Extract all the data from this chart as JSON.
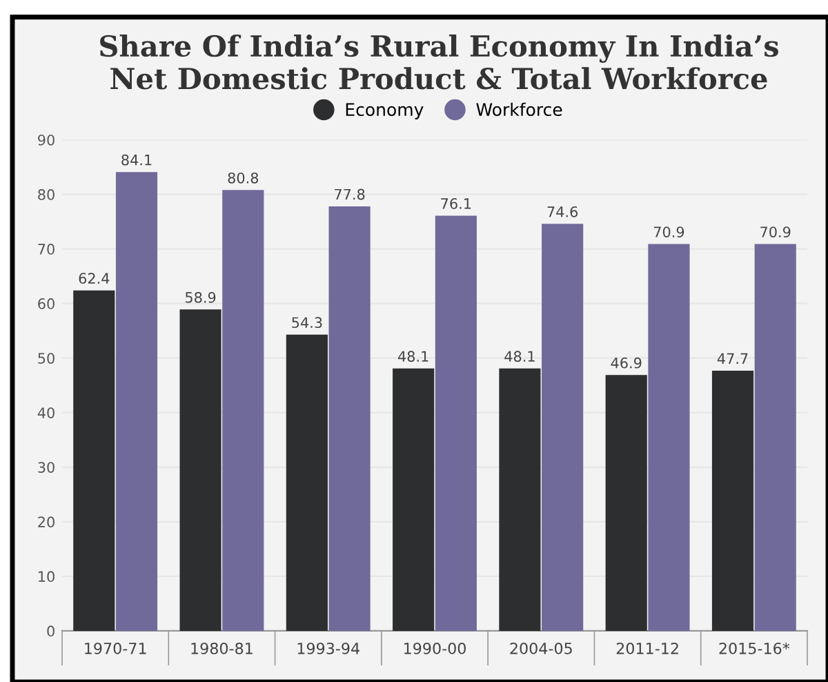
{
  "chart_data": {
    "type": "bar",
    "title": "Share Of India’s Rural Economy In India’s\nNet Domestic Product & Total Workforce",
    "categories": [
      "1970-71",
      "1980-81",
      "1993-94",
      "1990-00",
      "2004-05",
      "2011-12",
      "2015-16*"
    ],
    "series": [
      {
        "name": "Economy",
        "color": "#2d2e30",
        "values": [
          62.4,
          58.9,
          54.3,
          48.1,
          48.1,
          46.9,
          47.7
        ]
      },
      {
        "name": "Workforce",
        "color": "#706a9a",
        "values": [
          84.1,
          80.8,
          77.8,
          76.1,
          74.6,
          70.9,
          70.9
        ]
      }
    ],
    "ylim": [
      0,
      90
    ],
    "yticks": [
      0,
      10,
      20,
      30,
      40,
      50,
      60,
      70,
      80,
      90
    ],
    "grid": "y",
    "legend": "top",
    "data_labels": true
  }
}
